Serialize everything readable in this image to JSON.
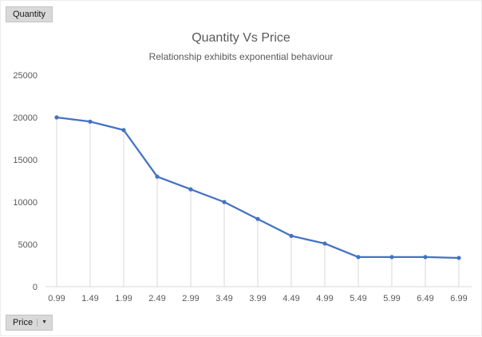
{
  "chart": {
    "value_field_button": "Quantity",
    "axis_field_button": "Price",
    "dropdown_arrow": "▼"
  },
  "chart_data": {
    "type": "line",
    "title": "Quantity Vs Price",
    "subtitle": "Relationship exhibits exponential behaviour",
    "categories": [
      "0.99",
      "1.49",
      "1.99",
      "2.49",
      "2.99",
      "3.49",
      "3.99",
      "4.49",
      "4.99",
      "5.49",
      "5.99",
      "6.49",
      "6.99"
    ],
    "values": [
      20000,
      19500,
      18500,
      13000,
      11500,
      10000,
      8000,
      6000,
      5100,
      3500,
      3500,
      3500,
      3400
    ],
    "xlabel": "",
    "ylabel": "",
    "ylim": [
      0,
      25000
    ],
    "ytick_step": 5000,
    "line_color": "#4472C4",
    "dropline_color": "#d9d9d9",
    "axis_color": "#d9d9d9",
    "droplines": true,
    "grid": false,
    "legend": "none",
    "markers": true
  }
}
